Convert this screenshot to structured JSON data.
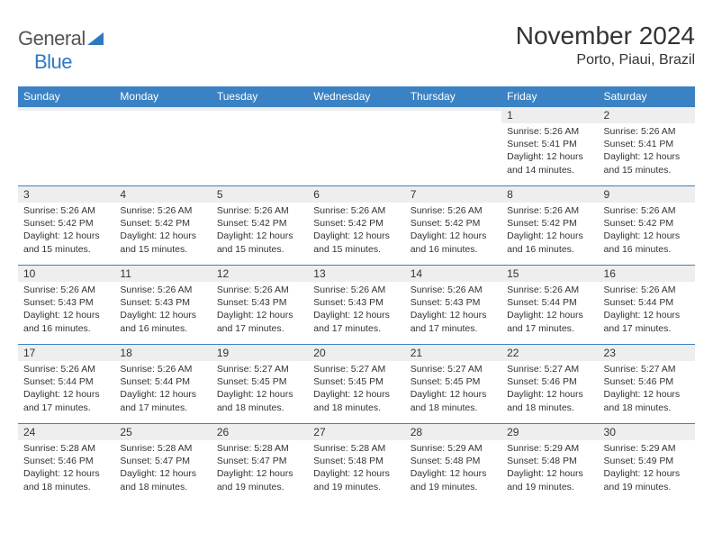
{
  "logo": {
    "general": "General",
    "blue": "Blue"
  },
  "title": "November 2024",
  "location": "Porto, Piaui, Brazil",
  "colors": {
    "header_bg": "#3a82c4",
    "header_text": "#ffffff",
    "daynum_bg": "#eeeeee",
    "border": "#3a82c4",
    "brand_blue": "#2e78c0",
    "brand_gray": "#555555",
    "body_text": "#333333"
  },
  "weekdays": [
    "Sunday",
    "Monday",
    "Tuesday",
    "Wednesday",
    "Thursday",
    "Friday",
    "Saturday"
  ],
  "weeks": [
    [
      {
        "day": "",
        "sunrise": "",
        "sunset": "",
        "daylight": ""
      },
      {
        "day": "",
        "sunrise": "",
        "sunset": "",
        "daylight": ""
      },
      {
        "day": "",
        "sunrise": "",
        "sunset": "",
        "daylight": ""
      },
      {
        "day": "",
        "sunrise": "",
        "sunset": "",
        "daylight": ""
      },
      {
        "day": "",
        "sunrise": "",
        "sunset": "",
        "daylight": ""
      },
      {
        "day": "1",
        "sunrise": "Sunrise: 5:26 AM",
        "sunset": "Sunset: 5:41 PM",
        "daylight": "Daylight: 12 hours and 14 minutes."
      },
      {
        "day": "2",
        "sunrise": "Sunrise: 5:26 AM",
        "sunset": "Sunset: 5:41 PM",
        "daylight": "Daylight: 12 hours and 15 minutes."
      }
    ],
    [
      {
        "day": "3",
        "sunrise": "Sunrise: 5:26 AM",
        "sunset": "Sunset: 5:42 PM",
        "daylight": "Daylight: 12 hours and 15 minutes."
      },
      {
        "day": "4",
        "sunrise": "Sunrise: 5:26 AM",
        "sunset": "Sunset: 5:42 PM",
        "daylight": "Daylight: 12 hours and 15 minutes."
      },
      {
        "day": "5",
        "sunrise": "Sunrise: 5:26 AM",
        "sunset": "Sunset: 5:42 PM",
        "daylight": "Daylight: 12 hours and 15 minutes."
      },
      {
        "day": "6",
        "sunrise": "Sunrise: 5:26 AM",
        "sunset": "Sunset: 5:42 PM",
        "daylight": "Daylight: 12 hours and 15 minutes."
      },
      {
        "day": "7",
        "sunrise": "Sunrise: 5:26 AM",
        "sunset": "Sunset: 5:42 PM",
        "daylight": "Daylight: 12 hours and 16 minutes."
      },
      {
        "day": "8",
        "sunrise": "Sunrise: 5:26 AM",
        "sunset": "Sunset: 5:42 PM",
        "daylight": "Daylight: 12 hours and 16 minutes."
      },
      {
        "day": "9",
        "sunrise": "Sunrise: 5:26 AM",
        "sunset": "Sunset: 5:42 PM",
        "daylight": "Daylight: 12 hours and 16 minutes."
      }
    ],
    [
      {
        "day": "10",
        "sunrise": "Sunrise: 5:26 AM",
        "sunset": "Sunset: 5:43 PM",
        "daylight": "Daylight: 12 hours and 16 minutes."
      },
      {
        "day": "11",
        "sunrise": "Sunrise: 5:26 AM",
        "sunset": "Sunset: 5:43 PM",
        "daylight": "Daylight: 12 hours and 16 minutes."
      },
      {
        "day": "12",
        "sunrise": "Sunrise: 5:26 AM",
        "sunset": "Sunset: 5:43 PM",
        "daylight": "Daylight: 12 hours and 17 minutes."
      },
      {
        "day": "13",
        "sunrise": "Sunrise: 5:26 AM",
        "sunset": "Sunset: 5:43 PM",
        "daylight": "Daylight: 12 hours and 17 minutes."
      },
      {
        "day": "14",
        "sunrise": "Sunrise: 5:26 AM",
        "sunset": "Sunset: 5:43 PM",
        "daylight": "Daylight: 12 hours and 17 minutes."
      },
      {
        "day": "15",
        "sunrise": "Sunrise: 5:26 AM",
        "sunset": "Sunset: 5:44 PM",
        "daylight": "Daylight: 12 hours and 17 minutes."
      },
      {
        "day": "16",
        "sunrise": "Sunrise: 5:26 AM",
        "sunset": "Sunset: 5:44 PM",
        "daylight": "Daylight: 12 hours and 17 minutes."
      }
    ],
    [
      {
        "day": "17",
        "sunrise": "Sunrise: 5:26 AM",
        "sunset": "Sunset: 5:44 PM",
        "daylight": "Daylight: 12 hours and 17 minutes."
      },
      {
        "day": "18",
        "sunrise": "Sunrise: 5:26 AM",
        "sunset": "Sunset: 5:44 PM",
        "daylight": "Daylight: 12 hours and 17 minutes."
      },
      {
        "day": "19",
        "sunrise": "Sunrise: 5:27 AM",
        "sunset": "Sunset: 5:45 PM",
        "daylight": "Daylight: 12 hours and 18 minutes."
      },
      {
        "day": "20",
        "sunrise": "Sunrise: 5:27 AM",
        "sunset": "Sunset: 5:45 PM",
        "daylight": "Daylight: 12 hours and 18 minutes."
      },
      {
        "day": "21",
        "sunrise": "Sunrise: 5:27 AM",
        "sunset": "Sunset: 5:45 PM",
        "daylight": "Daylight: 12 hours and 18 minutes."
      },
      {
        "day": "22",
        "sunrise": "Sunrise: 5:27 AM",
        "sunset": "Sunset: 5:46 PM",
        "daylight": "Daylight: 12 hours and 18 minutes."
      },
      {
        "day": "23",
        "sunrise": "Sunrise: 5:27 AM",
        "sunset": "Sunset: 5:46 PM",
        "daylight": "Daylight: 12 hours and 18 minutes."
      }
    ],
    [
      {
        "day": "24",
        "sunrise": "Sunrise: 5:28 AM",
        "sunset": "Sunset: 5:46 PM",
        "daylight": "Daylight: 12 hours and 18 minutes."
      },
      {
        "day": "25",
        "sunrise": "Sunrise: 5:28 AM",
        "sunset": "Sunset: 5:47 PM",
        "daylight": "Daylight: 12 hours and 18 minutes."
      },
      {
        "day": "26",
        "sunrise": "Sunrise: 5:28 AM",
        "sunset": "Sunset: 5:47 PM",
        "daylight": "Daylight: 12 hours and 19 minutes."
      },
      {
        "day": "27",
        "sunrise": "Sunrise: 5:28 AM",
        "sunset": "Sunset: 5:48 PM",
        "daylight": "Daylight: 12 hours and 19 minutes."
      },
      {
        "day": "28",
        "sunrise": "Sunrise: 5:29 AM",
        "sunset": "Sunset: 5:48 PM",
        "daylight": "Daylight: 12 hours and 19 minutes."
      },
      {
        "day": "29",
        "sunrise": "Sunrise: 5:29 AM",
        "sunset": "Sunset: 5:48 PM",
        "daylight": "Daylight: 12 hours and 19 minutes."
      },
      {
        "day": "30",
        "sunrise": "Sunrise: 5:29 AM",
        "sunset": "Sunset: 5:49 PM",
        "daylight": "Daylight: 12 hours and 19 minutes."
      }
    ]
  ]
}
